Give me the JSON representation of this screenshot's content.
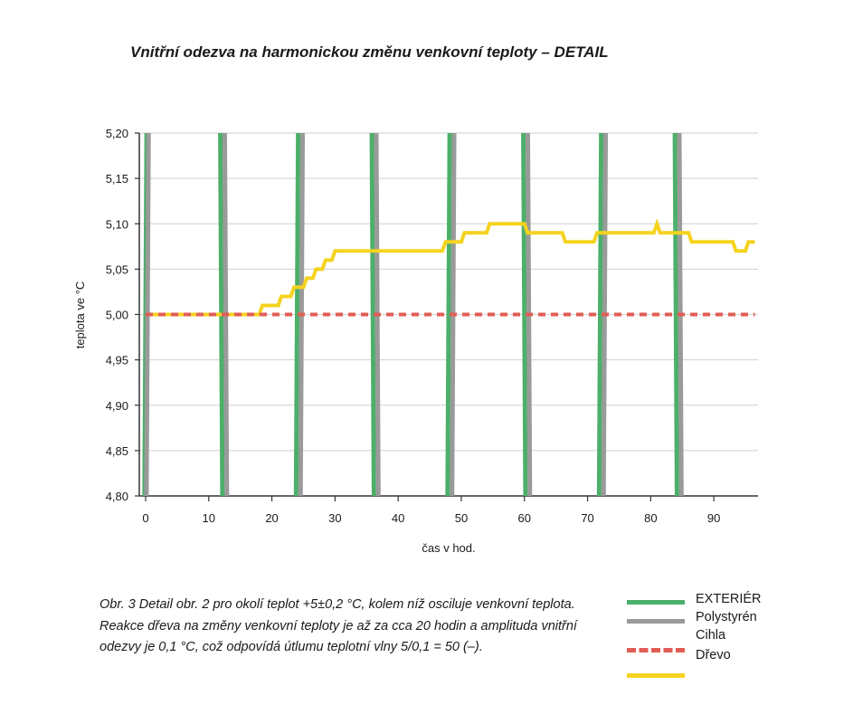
{
  "title": "Vnitřní odezva na harmonickou změnu venkovní teploty – DETAIL",
  "caption": "Obr. 3 Detail obr. 2 pro okolí teplot +5±0,2 °C, kolem níž osciluje venkovní teplota. Reakce dřeva na změny venkovní teploty je až za cca 20 hodin a amplituda vnitřní odezvy je 0,1 °C, což odpovídá útlumu teplotní vlny 5/0,1 = 50 (–).",
  "legend": {
    "entries": [
      {
        "label": "EXTERIÉR",
        "color": "#4caf6a",
        "style": "solid"
      },
      {
        "label": "Polystyrén",
        "color": "#9a9a9a",
        "style": "solid"
      },
      {
        "label": "Cihla",
        "color": "#e25d55",
        "style": "dashed"
      },
      {
        "label": "Dřevo",
        "color": "#f5d31f",
        "style": "solid"
      }
    ]
  },
  "chart_data": {
    "type": "line",
    "xlabel": "čas v hod.",
    "ylabel": "teplota ve °C",
    "xlim": [
      -1,
      97
    ],
    "ylim": [
      4.8,
      5.2
    ],
    "x_ticks": [
      "0",
      "10",
      "20",
      "30",
      "40",
      "50",
      "60",
      "70",
      "80",
      "90"
    ],
    "y_ticks": [
      "4,80",
      "4,85",
      "4,90",
      "4,95",
      "5,00",
      "5,05",
      "5,10",
      "5,15",
      "5,20"
    ],
    "grid": "horizontal",
    "series": [
      {
        "name": "EXTERIÉR",
        "color": "#4caf6a",
        "width": 5,
        "crossings": [
          {
            "t": 0,
            "dir": "up"
          },
          {
            "t": 12,
            "dir": "down"
          },
          {
            "t": 24,
            "dir": "up"
          },
          {
            "t": 36,
            "dir": "down"
          },
          {
            "t": 48,
            "dir": "up"
          },
          {
            "t": 60,
            "dir": "down"
          },
          {
            "t": 72,
            "dir": "up"
          },
          {
            "t": 84,
            "dir": "down"
          }
        ],
        "note_values": "sinusoid 5 ± 0,2 °C leaving the detailed range"
      },
      {
        "name": "Polystyrén",
        "color": "#9a9a9a",
        "width": 5,
        "crossings": [
          {
            "t": 0.3,
            "dir": "up"
          },
          {
            "t": 12.7,
            "dir": "down"
          },
          {
            "t": 24.7,
            "dir": "up"
          },
          {
            "t": 36.7,
            "dir": "down"
          },
          {
            "t": 48.7,
            "dir": "up"
          },
          {
            "t": 60.7,
            "dir": "down"
          },
          {
            "t": 72.7,
            "dir": "up"
          },
          {
            "t": 84.7,
            "dir": "down"
          }
        ]
      },
      {
        "name": "Cihla",
        "color": "#e25d55",
        "width": 4,
        "dashed": true,
        "x": [
          0,
          96.5
        ],
        "y": [
          5.0,
          5.0
        ]
      },
      {
        "name": "Dřevo",
        "color": "#f5d31f",
        "width": 4,
        "x": [
          0,
          18,
          18.5,
          21,
          21.5,
          23,
          23.5,
          25,
          25.5,
          26.5,
          27,
          28,
          28.5,
          29.5,
          30,
          32,
          32.5,
          47,
          47.5,
          50,
          50.5,
          54,
          54.5,
          60,
          60.5,
          66,
          66.5,
          71,
          71.5,
          80.5,
          81,
          81.5,
          86,
          86.5,
          93,
          93.5,
          95,
          95.5,
          96.5
        ],
        "y": [
          5.0,
          5.0,
          5.01,
          5.01,
          5.02,
          5.02,
          5.03,
          5.03,
          5.04,
          5.04,
          5.05,
          5.05,
          5.06,
          5.06,
          5.07,
          5.07,
          5.07,
          5.07,
          5.08,
          5.08,
          5.09,
          5.09,
          5.1,
          5.1,
          5.09,
          5.09,
          5.08,
          5.08,
          5.09,
          5.09,
          5.1,
          5.09,
          5.09,
          5.08,
          5.08,
          5.07,
          5.07,
          5.08,
          5.08
        ]
      }
    ]
  }
}
